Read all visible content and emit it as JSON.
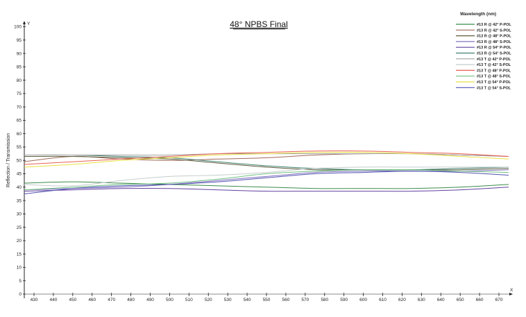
{
  "chart_data": {
    "type": "line",
    "title": "48° NPBS Final",
    "xlabel": "",
    "ylabel": "Reflection / Transmission",
    "x_axis_letter": "X",
    "y_axis_letter": "Y",
    "legend_title": "Wavelength (nm)",
    "legend_position": "top-right",
    "grid": false,
    "xlim": [
      425,
      675
    ],
    "ylim": [
      0,
      100
    ],
    "x_ticks": [
      430,
      440,
      450,
      460,
      470,
      480,
      490,
      500,
      510,
      520,
      530,
      540,
      550,
      560,
      570,
      580,
      590,
      600,
      610,
      620,
      630,
      640,
      650,
      660,
      670
    ],
    "y_ticks": [
      0,
      5,
      10,
      15,
      20,
      25,
      30,
      35,
      40,
      45,
      50,
      55,
      60,
      65,
      70,
      75,
      80,
      85,
      90,
      95,
      100
    ],
    "x": [
      425,
      450,
      475,
      500,
      525,
      550,
      575,
      600,
      625,
      650,
      675
    ],
    "series": [
      {
        "name": "#13 R @ 42° P-POL",
        "color": "#3a8a4a",
        "values": [
          41.5,
          42,
          41.5,
          41,
          40.5,
          40,
          39.5,
          39.5,
          39.5,
          40,
          41
        ]
      },
      {
        "name": "#13 R @ 42° S-POL",
        "color": "#a06a5a",
        "values": [
          49.5,
          51.5,
          50.5,
          50,
          50.5,
          51,
          52,
          52.5,
          52.5,
          52,
          51.5
        ]
      },
      {
        "name": "#13 R @ 48° P-POL",
        "color": "#5a5a3a",
        "values": [
          51.5,
          51.5,
          51,
          50.5,
          49,
          47.5,
          46.5,
          46.5,
          46.5,
          46.5,
          47
        ]
      },
      {
        "name": "#13 R @ 48° S-POL",
        "color": "#8070c0",
        "values": [
          39,
          39.5,
          40,
          41,
          42.5,
          44,
          45.5,
          46,
          46,
          46,
          46.5
        ]
      },
      {
        "name": "#13 R @ 54° P-POL",
        "color": "#6040a0",
        "values": [
          38.5,
          39,
          39.5,
          39.5,
          39,
          38.5,
          38.5,
          38.5,
          38.5,
          39,
          40
        ]
      },
      {
        "name": "#13 R @ 54° S-POL",
        "color": "#408070",
        "values": [
          52,
          52,
          51.5,
          51,
          49.5,
          48,
          47,
          46.5,
          46.5,
          47,
          47.5
        ]
      },
      {
        "name": "#13 T @ 42° P-POL",
        "color": "#a0a0a0",
        "values": [
          52,
          52,
          52,
          52,
          52.5,
          52.5,
          52.5,
          52.5,
          52.5,
          52,
          51.5
        ]
      },
      {
        "name": "#13 T @ 42° S-POL",
        "color": "#c4cccc",
        "values": [
          41,
          40.5,
          42.5,
          44,
          44.5,
          45.5,
          47,
          47.5,
          47.5,
          47.5,
          47.5
        ]
      },
      {
        "name": "#13 T @ 48° P-POL",
        "color": "#e86050",
        "values": [
          48.5,
          49.5,
          50.5,
          51.5,
          52.5,
          53,
          53.5,
          53.5,
          53,
          52.5,
          51.5
        ]
      },
      {
        "name": "#13 T @ 48° S-POL",
        "color": "#70c080",
        "values": [
          39,
          40,
          41,
          41.5,
          43,
          45,
          46,
          46.5,
          46.5,
          46,
          45.5
        ]
      },
      {
        "name": "#13 T @ 54° P-POL",
        "color": "#e8e040",
        "values": [
          47.5,
          48.5,
          50,
          51,
          52,
          52.5,
          53,
          53,
          52.5,
          51.5,
          50.5
        ]
      },
      {
        "name": "#13 T @ 54° S-POL",
        "color": "#5050b0",
        "values": [
          37.5,
          39.5,
          40.5,
          41,
          42,
          43.5,
          45,
          45.5,
          46,
          45.5,
          44.5
        ]
      }
    ]
  }
}
